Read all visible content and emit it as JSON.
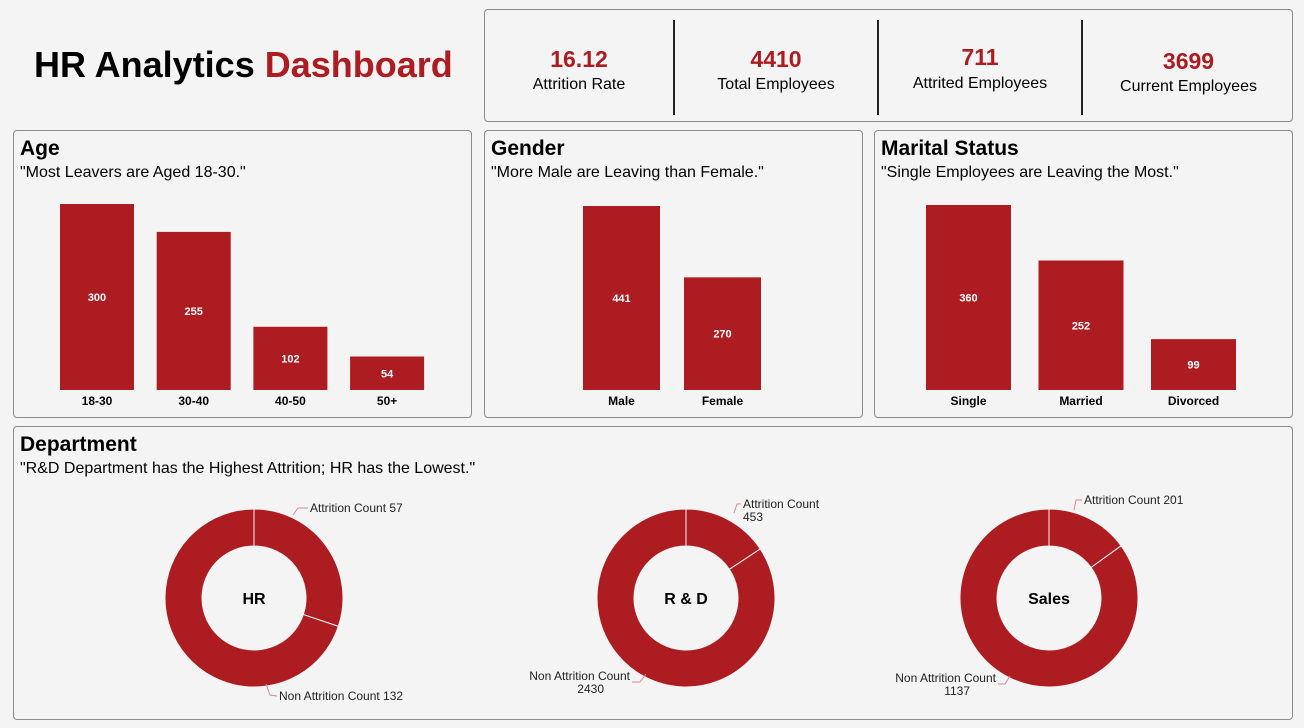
{
  "header": {
    "title_main": "HR Analytics",
    "title_accent": "Dashboard"
  },
  "kpis": [
    {
      "value": "16.12",
      "label": "Attrition Rate"
    },
    {
      "value": "4410",
      "label": "Total Employees"
    },
    {
      "value": "711",
      "label": "Attrited Employees"
    },
    {
      "value": "3699",
      "label": "Current Employees"
    }
  ],
  "colors": {
    "accent": "#ac1c21",
    "bar": "#ac1c21",
    "background": "#f4f4f4"
  },
  "chart_data": [
    {
      "type": "bar",
      "id": "age",
      "title": "Age",
      "subtitle": "\"Most Leavers are Aged 18-30.\"",
      "categories": [
        "18-30",
        "30-40",
        "40-50",
        "50+"
      ],
      "values": [
        300,
        255,
        102,
        54
      ],
      "ylim": [
        0,
        300
      ],
      "grid": false
    },
    {
      "type": "bar",
      "id": "gender",
      "title": "Gender",
      "subtitle": "\"More Male are Leaving than Female.\"",
      "categories": [
        "Male",
        "Female"
      ],
      "values": [
        441,
        270
      ],
      "ylim": [
        0,
        441
      ],
      "grid": false
    },
    {
      "type": "bar",
      "id": "marital",
      "title": "Marital Status",
      "subtitle": "\"Single Employees are Leaving the Most.\"",
      "categories": [
        "Single",
        "Married",
        "Divorced"
      ],
      "values": [
        360,
        252,
        99
      ],
      "ylim": [
        0,
        360
      ],
      "grid": false
    },
    {
      "type": "pie",
      "id": "department",
      "title": "Department",
      "subtitle": "\"R&D Department has the Highest Attrition; HR has the Lowest.\"",
      "donuts": [
        {
          "center_label": "HR",
          "slices": [
            {
              "label": "Attrition Count 57",
              "value": 57
            },
            {
              "label": "Non Attrition Count 132",
              "value": 132
            }
          ]
        },
        {
          "center_label": "R & D",
          "slices": [
            {
              "label": "Attrition Count 453",
              "value": 453
            },
            {
              "label": "Non Attrition Count 2430",
              "value": 2430
            }
          ]
        },
        {
          "center_label": "Sales",
          "slices": [
            {
              "label": "Attrition Count 201",
              "value": 201
            },
            {
              "label": "Non Attrition Count 1137",
              "value": 1137
            }
          ]
        }
      ]
    }
  ]
}
